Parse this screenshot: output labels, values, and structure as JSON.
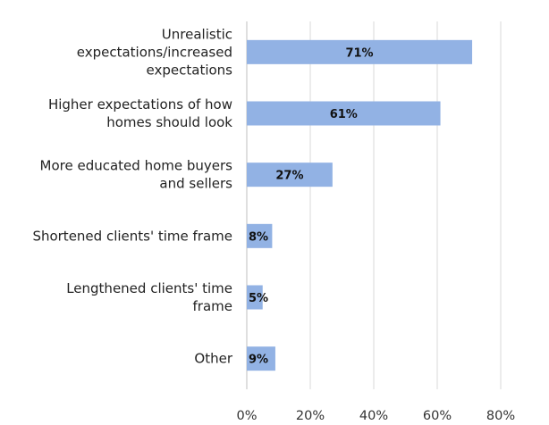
{
  "chart_data": {
    "type": "bar",
    "orientation": "horizontal",
    "title": "",
    "xlabel": "",
    "ylabel": "",
    "categories": [
      [
        "Unrealistic",
        "expectations/increased",
        "expectations"
      ],
      [
        "Higher expectations of how",
        "homes should look"
      ],
      [
        "More educated home buyers",
        "and sellers"
      ],
      [
        "Shortened clients' time frame"
      ],
      [
        "Lengthened clients' time",
        "frame"
      ],
      [
        "Other"
      ]
    ],
    "values": [
      71,
      61,
      27,
      8,
      5,
      9
    ],
    "data_labels": [
      "71%",
      "61%",
      "27%",
      "8%",
      "5%",
      "9%"
    ],
    "xlim": [
      0,
      80
    ],
    "xticks": [
      0,
      20,
      40,
      60,
      80
    ],
    "xtick_labels": [
      "0%",
      "20%",
      "40%",
      "60%",
      "80%"
    ],
    "grid": true,
    "bar_color": "#92b2e4",
    "legend": "none"
  }
}
